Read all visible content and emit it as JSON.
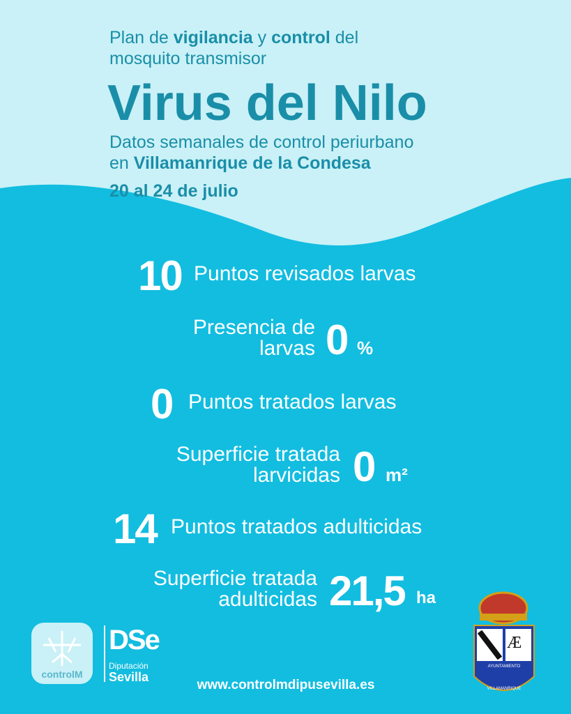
{
  "header": {
    "intro": [
      "Plan de ",
      "vigilancia",
      " y ",
      "control",
      " del",
      "mosquito transmisor"
    ],
    "title": "Virus del Nilo",
    "subtitle": [
      "Datos semanales de control periurbano",
      "en ",
      "Villamanrique de la Condesa"
    ],
    "dates": "20 al 24 de julio"
  },
  "stats": [
    {
      "value": "10",
      "label": "Puntos revisados larvas"
    },
    {
      "value": "0",
      "unit": "%",
      "label": [
        "Presencia de",
        "larvas"
      ]
    },
    {
      "value": "0",
      "label": "Puntos tratados larvas"
    },
    {
      "value": "0",
      "unit": "m²",
      "label": [
        "Superficie tratada",
        "larvicidas"
      ]
    },
    {
      "value": "14",
      "label": "Puntos tratados adulticidas"
    },
    {
      "value": "21,5",
      "unit": "ha",
      "label": [
        "Superficie tratada",
        "adulticidas"
      ]
    }
  ],
  "footer": {
    "controlm": "controlM",
    "diputacion": {
      "mark": "DSe",
      "line1": "Diputación",
      "line2": "Sevilla"
    },
    "url": "www.controlmdipusevilla.es",
    "crest": {
      "letters": "Æ",
      "top": "AYUNTAMIENTO",
      "bottom": "VILLAMANRIQUE"
    }
  }
}
